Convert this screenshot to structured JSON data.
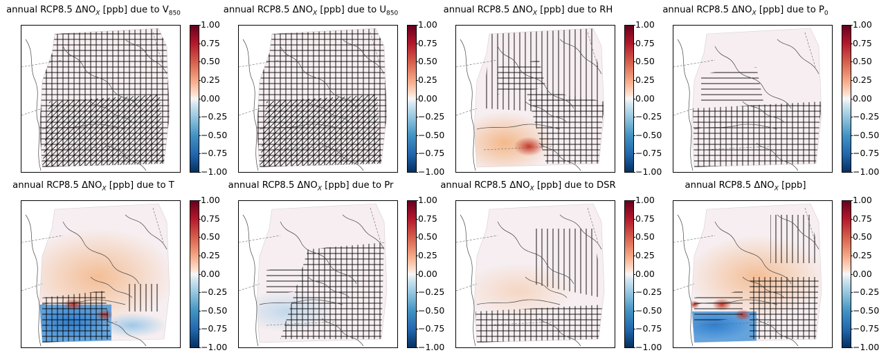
{
  "chart_data": [
    {
      "type": "heatmap",
      "title": "annual RCP8.5 ΔNO",
      "title_sub": "X",
      "title_rest": " [ppb] due to V",
      "title_tail": "850",
      "colorbar": {
        "min": -1.0,
        "max": 1.0,
        "ticks": [
          "1.00",
          "0.75",
          "0.50",
          "0.25",
          "0.00",
          "−0.25",
          "−0.50",
          "−0.75",
          "−1.00"
        ],
        "colormap": "RdBu_r"
      },
      "hatching": "dense",
      "field": "near-zero"
    },
    {
      "type": "heatmap",
      "title": "annual RCP8.5 ΔNO",
      "title_sub": "X",
      "title_rest": " [ppb] due to U",
      "title_tail": "850",
      "colorbar": {
        "min": -1.0,
        "max": 1.0,
        "ticks": [
          "1.00",
          "0.75",
          "0.50",
          "0.25",
          "0.00",
          "−0.25",
          "−0.50",
          "−0.75",
          "−1.00"
        ],
        "colormap": "RdBu_r"
      },
      "hatching": "dense",
      "field": "near-zero"
    },
    {
      "type": "heatmap",
      "title": "annual RCP8.5 ΔNO",
      "title_sub": "X",
      "title_rest": " [ppb] due to RH",
      "title_tail": "",
      "colorbar": {
        "min": -1.0,
        "max": 1.0,
        "ticks": [
          "1.00",
          "0.75",
          "0.50",
          "0.25",
          "0.00",
          "−0.25",
          "−0.50",
          "−0.75",
          "−1.00"
        ],
        "colormap": "RdBu_r"
      },
      "hatching": "vertical",
      "field": "positive south"
    },
    {
      "type": "heatmap",
      "title": "annual RCP8.5 ΔNO",
      "title_sub": "X",
      "title_rest": " [ppb] due to P",
      "title_tail": "0",
      "colorbar": {
        "min": -1.0,
        "max": 1.0,
        "ticks": [
          "1.00",
          "0.75",
          "0.50",
          "0.25",
          "0.00",
          "−0.25",
          "−0.50",
          "−0.75",
          "−1.00"
        ],
        "colormap": "RdBu_r"
      },
      "hatching": "dense south",
      "field": "near-zero"
    },
    {
      "type": "heatmap",
      "title": "annual RCP8.5 ΔNO",
      "title_sub": "X",
      "title_rest": " [ppb] due to T",
      "title_tail": "",
      "colorbar": {
        "min": -1.0,
        "max": 1.0,
        "ticks": [
          "1.00",
          "0.75",
          "0.50",
          "0.25",
          "0.00",
          "−0.25",
          "−0.50",
          "−0.75",
          "−1.00"
        ],
        "colormap": "RdBu_r"
      },
      "hatching": "sparse",
      "field": "positive north, negative southwest"
    },
    {
      "type": "heatmap",
      "title": "annual RCP8.5 ΔNO",
      "title_sub": "X",
      "title_rest": " [ppb] due to Pr",
      "title_tail": "",
      "colorbar": {
        "min": -1.0,
        "max": 1.0,
        "ticks": [
          "1.00",
          "0.75",
          "0.50",
          "0.25",
          "0.00",
          "−0.25",
          "−0.50",
          "−0.75",
          "−1.00"
        ],
        "colormap": "RdBu_r"
      },
      "hatching": "dense south",
      "field": "near-zero"
    },
    {
      "type": "heatmap",
      "title": "annual RCP8.5 ΔNO",
      "title_sub": "X",
      "title_rest": " [ppb] due to DSR",
      "title_tail": "",
      "colorbar": {
        "min": -1.0,
        "max": 1.0,
        "ticks": [
          "1.00",
          "0.75",
          "0.50",
          "0.25",
          "0.00",
          "−0.25",
          "−0.50",
          "−0.75",
          "−1.00"
        ],
        "colormap": "RdBu_r"
      },
      "hatching": "dense south",
      "field": "near-zero"
    },
    {
      "type": "heatmap",
      "title": "annual RCP8.5 ΔNO",
      "title_sub": "X",
      "title_rest": " [ppb]",
      "title_tail": "",
      "colorbar": {
        "min": -1.0,
        "max": 1.0,
        "ticks": [
          "1.00",
          "0.75",
          "0.50",
          "0.25",
          "0.00",
          "−0.25",
          "−0.50",
          "−0.75",
          "−1.00"
        ],
        "colormap": "RdBu_r"
      },
      "hatching": "mixed",
      "field": "positive east, negative southwest"
    }
  ]
}
